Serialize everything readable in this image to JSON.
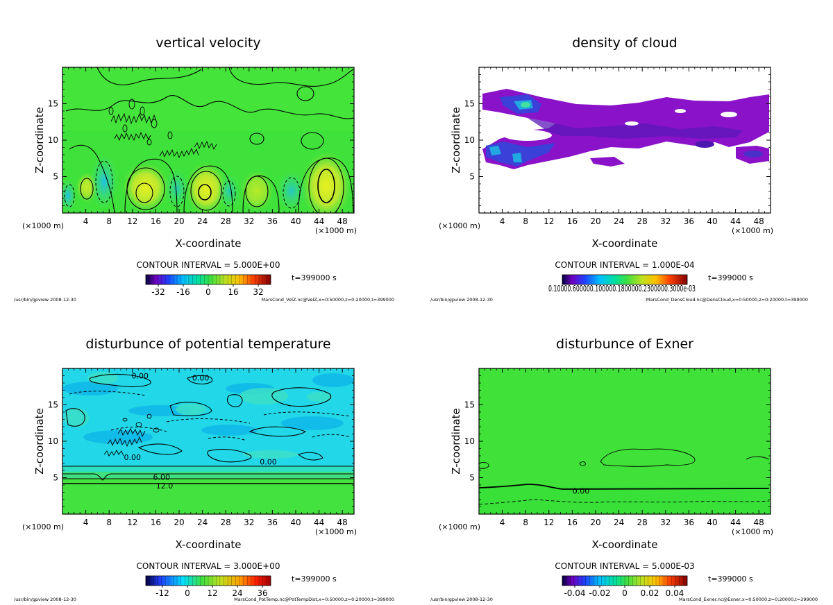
{
  "chart_data": [
    {
      "type": "heatmap",
      "title": "vertical velocity",
      "xlabel": "X-coordinate",
      "ylabel": "Z-coordinate",
      "x_unit_left": "(×1000 m)",
      "x_unit_right": "(×1000 m)",
      "xlim": [
        0,
        50
      ],
      "ylim": [
        0,
        20
      ],
      "xticks": [
        4,
        8,
        12,
        16,
        20,
        24,
        28,
        32,
        36,
        40,
        44,
        48
      ],
      "yticks": [
        5,
        10,
        15
      ],
      "contour_interval": "CONTOUR INTERVAL = 5.000E+00",
      "time": "t=399000 s",
      "colorbar": {
        "ticks": [
          "-32",
          "-16",
          "0",
          "16",
          "32"
        ],
        "range": [
          -40,
          40
        ]
      },
      "footer_left": "/usr/bin/gpview  2008-12-30",
      "footer_right": "MarsCond_VelZ.nc@VelZ,x=0:50000,z=0:20000,t=399000",
      "contour_labels": []
    },
    {
      "type": "heatmap",
      "title": "density of cloud",
      "xlabel": "X-coordinate",
      "ylabel": "Z-coordinate",
      "x_unit_left": "(×1000 m)",
      "x_unit_right": "(×1000 m)",
      "xlim": [
        0,
        50
      ],
      "ylim": [
        0,
        20
      ],
      "xticks": [
        4,
        8,
        12,
        16,
        20,
        24,
        28,
        32,
        36,
        40,
        44,
        48
      ],
      "yticks": [
        5,
        10,
        15
      ],
      "contour_interval": "CONTOUR INTERVAL = 1.000E-04",
      "time": "t=399000 s",
      "colorbar": {
        "ticks_text": "0.10000.600000.100000.1800000.2300000.3000e-03",
        "range": [
          0,
          1
        ]
      },
      "footer_left": "/usr/bin/gpview  2008-12-30",
      "footer_right": "MarsCond_DensCloud.nc@DensCloud,x=0:50000,z=0:20000,t=399000",
      "contour_labels": []
    },
    {
      "type": "heatmap",
      "title": "disturbunce of potential temperature",
      "xlabel": "X-coordinate",
      "ylabel": "Z-coordinate",
      "x_unit_left": "(×1000 m)",
      "x_unit_right": "(×1000 m)",
      "xlim": [
        0,
        50
      ],
      "ylim": [
        0,
        20
      ],
      "xticks": [
        4,
        8,
        12,
        16,
        20,
        24,
        28,
        32,
        36,
        40,
        44,
        48
      ],
      "yticks": [
        5,
        10,
        15
      ],
      "contour_interval": "CONTOUR INTERVAL = 3.000E+00",
      "time": "t=399000 s",
      "colorbar": {
        "ticks": [
          "-12",
          "0",
          "12",
          "24",
          "36"
        ],
        "range": [
          -20,
          40
        ]
      },
      "footer_left": "/usr/bin/gpview  2008-12-30",
      "footer_right": "MarsCond_PotTemp.nc@PotTempDist,x=0:50000,z=0:20000,t=399000",
      "contour_labels": [
        {
          "text": "0.00",
          "x": 13.3,
          "z": 19.0
        },
        {
          "text": "0.00",
          "x": 23.7,
          "z": 18.7
        },
        {
          "text": "0.00",
          "x": 12.0,
          "z": 7.8
        },
        {
          "text": "0.00",
          "x": 35.3,
          "z": 7.2
        },
        {
          "text": "6.00",
          "x": 17.0,
          "z": 5.1
        },
        {
          "text": "12.0",
          "x": 17.5,
          "z": 3.9
        }
      ]
    },
    {
      "type": "heatmap",
      "title": "disturbunce of Exner",
      "xlabel": "X-coordinate",
      "ylabel": "Z-coordinate",
      "x_unit_left": "(×1000 m)",
      "x_unit_right": "(×1000 m)",
      "xlim": [
        0,
        50
      ],
      "ylim": [
        0,
        20
      ],
      "xticks": [
        4,
        8,
        12,
        16,
        20,
        24,
        28,
        32,
        36,
        40,
        44,
        48
      ],
      "yticks": [
        5,
        10,
        15
      ],
      "contour_interval": "CONTOUR INTERVAL = 5.000E-03",
      "time": "t=399000 s",
      "colorbar": {
        "ticks": [
          "-0.04",
          "-0.02",
          "0",
          "0.02",
          "0.04"
        ],
        "range": [
          -0.05,
          0.05
        ]
      },
      "footer_left": "/usr/bin/gpview  2008-12-30",
      "footer_right": "MarsCond_Exner.nc@Exner,x=0:50000,z=0:20000,t=399000",
      "contour_labels": [
        {
          "text": "0.00",
          "x": 17.5,
          "z": 3.2
        }
      ]
    }
  ],
  "colors": {
    "velocity_bg": "#3fe23a",
    "cloud_main": "#8a12c8",
    "cloud_dark": "#4a18b0",
    "temp_bg": "#22d8e8",
    "exner_bg": "#38e038"
  }
}
